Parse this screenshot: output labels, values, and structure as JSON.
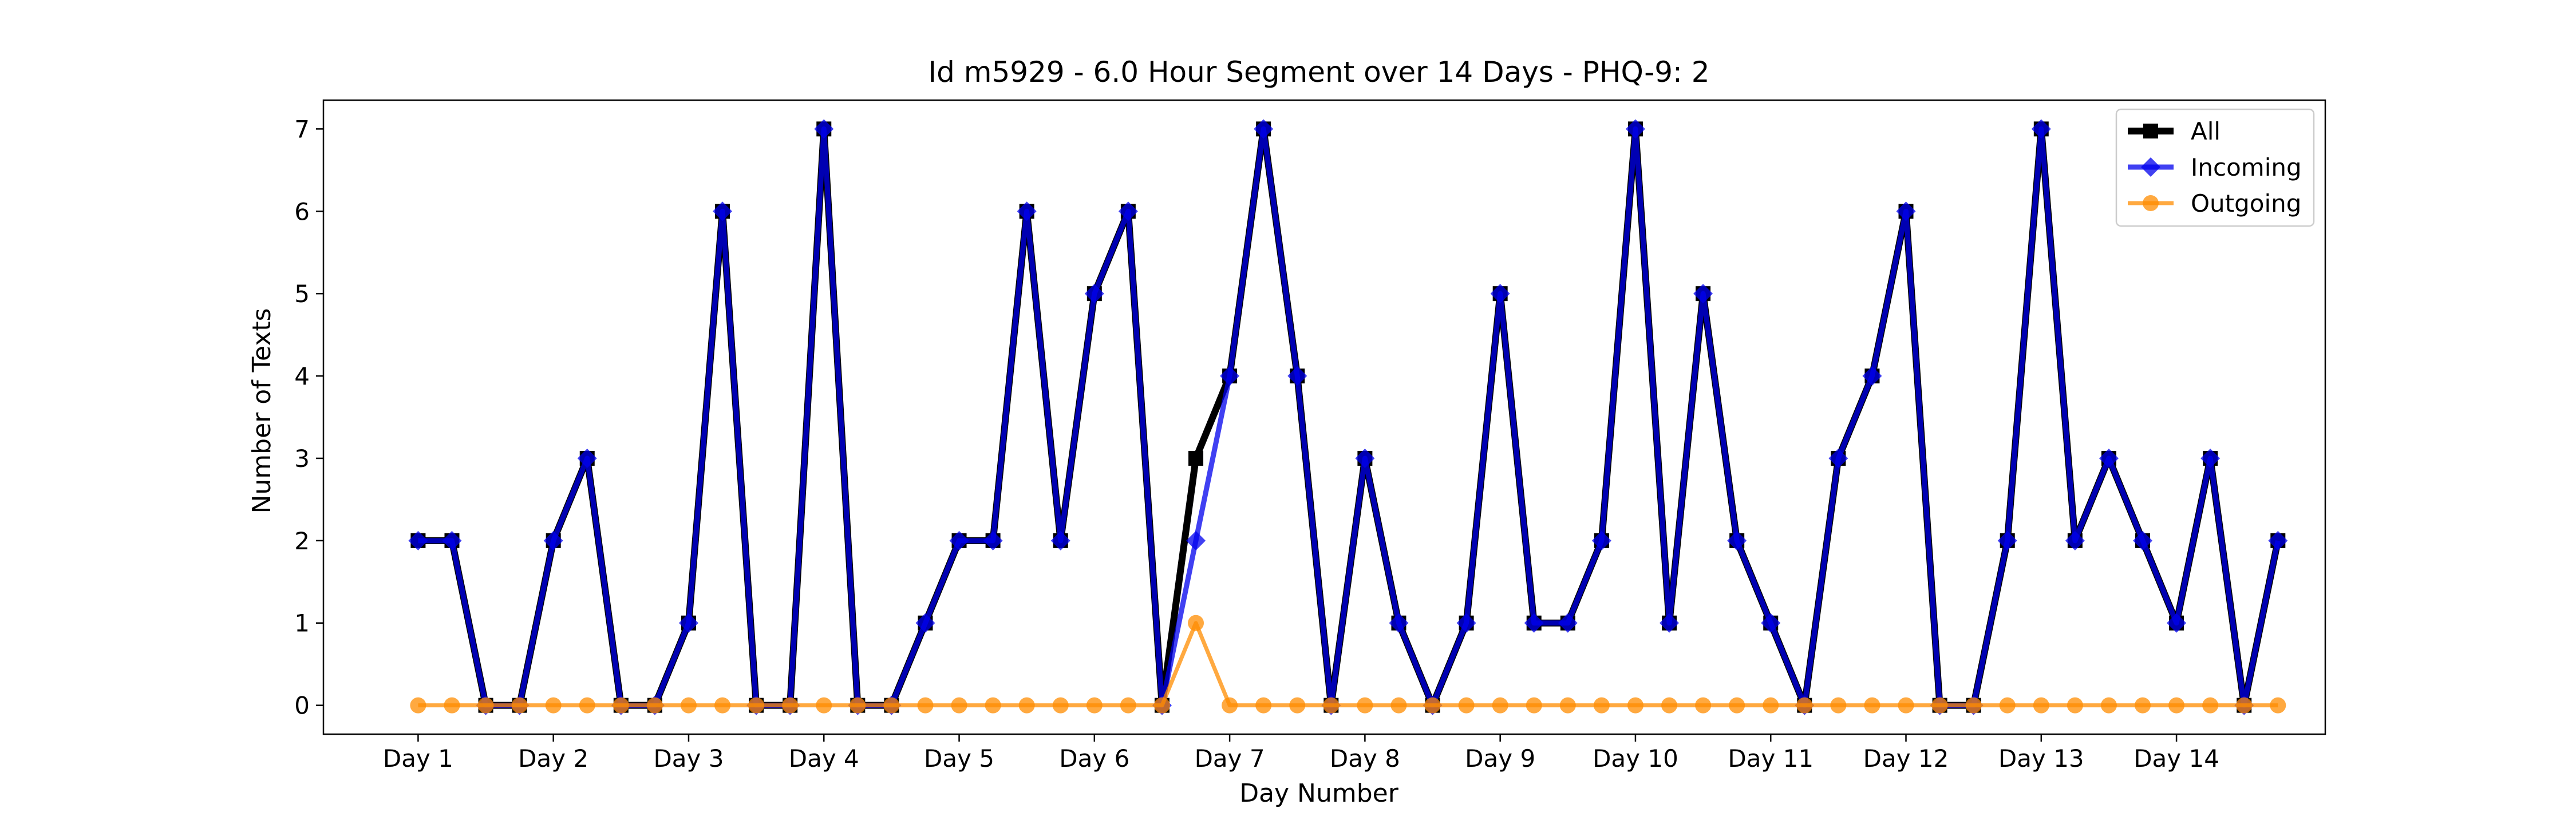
{
  "chart_data": {
    "type": "line",
    "title": "Id m5929 - 6.0 Hour Segment over 14 Days - PHQ-9: 2",
    "xlabel": "Day Number",
    "ylabel": "Number of Texts",
    "xlim": [
      0.3,
      15.1
    ],
    "ylim": [
      -0.35,
      7.35
    ],
    "yticks": [
      0,
      1,
      2,
      3,
      4,
      5,
      6,
      7
    ],
    "xticks": [
      {
        "value": 1,
        "label": "Day 1"
      },
      {
        "value": 2,
        "label": "Day 2"
      },
      {
        "value": 3,
        "label": "Day 3"
      },
      {
        "value": 4,
        "label": "Day 4"
      },
      {
        "value": 5,
        "label": "Day 5"
      },
      {
        "value": 6,
        "label": "Day 6"
      },
      {
        "value": 7,
        "label": "Day 7"
      },
      {
        "value": 8,
        "label": "Day 8"
      },
      {
        "value": 9,
        "label": "Day 9"
      },
      {
        "value": 10,
        "label": "Day 10"
      },
      {
        "value": 11,
        "label": "Day 11"
      },
      {
        "value": 12,
        "label": "Day 12"
      },
      {
        "value": 13,
        "label": "Day 13"
      },
      {
        "value": 14,
        "label": "Day 14"
      }
    ],
    "grid": false,
    "legend_position": "top-right",
    "x": [
      1.0,
      1.25,
      1.5,
      1.75,
      2.0,
      2.25,
      2.5,
      2.75,
      3.0,
      3.25,
      3.5,
      3.75,
      4.0,
      4.25,
      4.5,
      4.75,
      5.0,
      5.25,
      5.5,
      5.75,
      6.0,
      6.25,
      6.5,
      6.75,
      7.0,
      7.25,
      7.5,
      7.75,
      8.0,
      8.25,
      8.5,
      8.75,
      9.0,
      9.25,
      9.5,
      9.75,
      10.0,
      10.25,
      10.5,
      10.75,
      11.0,
      11.25,
      11.5,
      11.75,
      12.0,
      12.25,
      12.5,
      12.75,
      13.0,
      13.25,
      13.5,
      13.75,
      14.0,
      14.25,
      14.5,
      14.75
    ],
    "series": [
      {
        "name": "All",
        "color": "#000000",
        "marker": "square",
        "values": [
          2,
          2,
          0,
          0,
          2,
          3,
          0,
          0,
          1,
          6,
          0,
          0,
          7,
          0,
          0,
          1,
          2,
          2,
          6,
          2,
          5,
          6,
          0,
          3,
          4,
          7,
          4,
          0,
          3,
          1,
          0,
          1,
          5,
          1,
          1,
          2,
          7,
          1,
          5,
          2,
          1,
          0,
          3,
          4,
          6,
          0,
          0,
          2,
          7,
          2,
          3,
          2,
          1,
          3,
          0,
          2
        ]
      },
      {
        "name": "Incoming",
        "color": "#0000ee",
        "marker": "diamond",
        "values": [
          2,
          2,
          0,
          0,
          2,
          3,
          0,
          0,
          1,
          6,
          0,
          0,
          7,
          0,
          0,
          1,
          2,
          2,
          6,
          2,
          5,
          6,
          0,
          2,
          4,
          7,
          4,
          0,
          3,
          1,
          0,
          1,
          5,
          1,
          1,
          2,
          7,
          1,
          5,
          2,
          1,
          0,
          3,
          4,
          6,
          0,
          0,
          2,
          7,
          2,
          3,
          2,
          1,
          3,
          0,
          2
        ]
      },
      {
        "name": "Outgoing",
        "color": "#ff8c00",
        "marker": "circle",
        "values": [
          0,
          0,
          0,
          0,
          0,
          0,
          0,
          0,
          0,
          0,
          0,
          0,
          0,
          0,
          0,
          0,
          0,
          0,
          0,
          0,
          0,
          0,
          0,
          1,
          0,
          0,
          0,
          0,
          0,
          0,
          0,
          0,
          0,
          0,
          0,
          0,
          0,
          0,
          0,
          0,
          0,
          0,
          0,
          0,
          0,
          0,
          0,
          0,
          0,
          0,
          0,
          0,
          0,
          0,
          0,
          0
        ]
      }
    ]
  }
}
